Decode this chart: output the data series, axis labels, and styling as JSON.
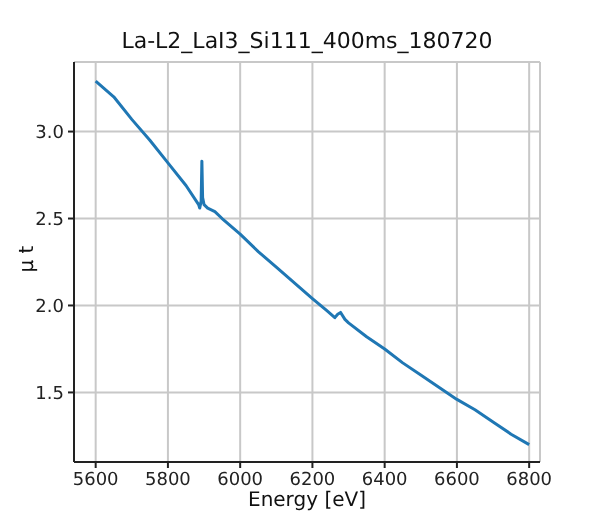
{
  "chart_data": {
    "type": "line",
    "title": "La-L2_LaI3_Si111_400ms_180720",
    "xlabel": "Energy [eV]",
    "ylabel": "μ t",
    "x": [
      5600,
      5650,
      5700,
      5750,
      5800,
      5850,
      5885,
      5888,
      5892,
      5894,
      5896,
      5900,
      5910,
      5930,
      5950,
      6000,
      6050,
      6100,
      6150,
      6200,
      6240,
      6262,
      6270,
      6278,
      6290,
      6300,
      6350,
      6400,
      6450,
      6500,
      6550,
      6600,
      6650,
      6700,
      6750,
      6800
    ],
    "series": [
      {
        "color": "#1f77b4",
        "values": [
          3.29,
          3.2,
          3.07,
          2.95,
          2.82,
          2.69,
          2.58,
          2.56,
          2.6,
          2.83,
          2.62,
          2.58,
          2.56,
          2.54,
          2.5,
          2.41,
          2.31,
          2.22,
          2.13,
          2.04,
          1.97,
          1.93,
          1.95,
          1.96,
          1.92,
          1.9,
          1.82,
          1.75,
          1.67,
          1.6,
          1.53,
          1.46,
          1.4,
          1.33,
          1.26,
          1.2
        ]
      }
    ],
    "xlim": [
      5540,
      6830
    ],
    "ylim": [
      1.1,
      3.4
    ],
    "xticks": [
      5600,
      5800,
      6000,
      6200,
      6400,
      6600,
      6800
    ],
    "yticks": [
      1.5,
      {
        "value": 2,
        "label": "2.0"
      },
      2.5,
      {
        "value": 3,
        "label": "3.0"
      }
    ],
    "grid": true,
    "legend": false,
    "marker": "none",
    "line_style": "solid"
  }
}
